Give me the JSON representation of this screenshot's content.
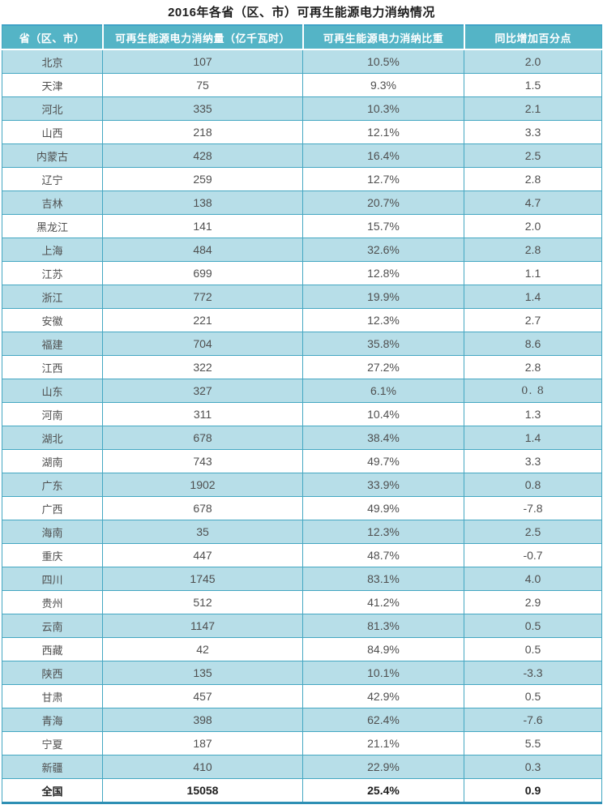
{
  "title": "2016年各省（区、市）可再生能源电力消纳情况",
  "colors": {
    "header_bg": "#54b4c6",
    "header_text": "#ffffff",
    "row_alt_bg": "#b7dee8",
    "row_bg": "#ffffff",
    "cell_border": "#44a7c2",
    "table_bottom_border": "#2e8fb4",
    "cell_text": "#4f4f4f",
    "title_text": "#1e1e1e"
  },
  "chart_data": {
    "type": "table",
    "title": "2016年各省（区、市）可再生能源电力消纳情况",
    "columns": [
      "省（区、市）",
      "可再生能源电力消纳量（亿千瓦时）",
      "可再生能源电力消纳比重",
      "同比增加百分点"
    ],
    "rows": [
      [
        "北京",
        "107",
        "10.5%",
        "2.0"
      ],
      [
        "天津",
        "75",
        "9.3%",
        "1.5"
      ],
      [
        "河北",
        "335",
        "10.3%",
        "2.1"
      ],
      [
        "山西",
        "218",
        "12.1%",
        "3.3"
      ],
      [
        "内蒙古",
        "428",
        "16.4%",
        "2.5"
      ],
      [
        "辽宁",
        "259",
        "12.7%",
        "2.8"
      ],
      [
        "吉林",
        "138",
        "20.7%",
        "4.7"
      ],
      [
        "黑龙江",
        "141",
        "15.7%",
        "2.0"
      ],
      [
        "上海",
        "484",
        "32.6%",
        "2.8"
      ],
      [
        "江苏",
        "699",
        "12.8%",
        "1.1"
      ],
      [
        "浙江",
        "772",
        "19.9%",
        "1.4"
      ],
      [
        "安徽",
        "221",
        "12.3%",
        "2.7"
      ],
      [
        "福建",
        "704",
        "35.8%",
        "8.6"
      ],
      [
        "江西",
        "322",
        "27.2%",
        "2.8"
      ],
      [
        "山东",
        "327",
        "6.1%",
        "0. 8"
      ],
      [
        "河南",
        "311",
        "10.4%",
        "1.3"
      ],
      [
        "湖北",
        "678",
        "38.4%",
        "1.4"
      ],
      [
        "湖南",
        "743",
        "49.7%",
        "3.3"
      ],
      [
        "广东",
        "1902",
        "33.9%",
        "0.8"
      ],
      [
        "广西",
        "678",
        "49.9%",
        "-7.8"
      ],
      [
        "海南",
        "35",
        "12.3%",
        "2.5"
      ],
      [
        "重庆",
        "447",
        "48.7%",
        "-0.7"
      ],
      [
        "四川",
        "1745",
        "83.1%",
        "4.0"
      ],
      [
        "贵州",
        "512",
        "41.2%",
        "2.9"
      ],
      [
        "云南",
        "1147",
        "81.3%",
        "0.5"
      ],
      [
        "西藏",
        "42",
        "84.9%",
        "0.5"
      ],
      [
        "陕西",
        "135",
        "10.1%",
        "-3.3"
      ],
      [
        "甘肃",
        "457",
        "42.9%",
        "0.5"
      ],
      [
        "青海",
        "398",
        "62.4%",
        "-7.6"
      ],
      [
        "宁夏",
        "187",
        "21.1%",
        "5.5"
      ],
      [
        "新疆",
        "410",
        "22.9%",
        "0.3"
      ],
      [
        "全国",
        "15058",
        "25.4%",
        "0.9"
      ]
    ],
    "total_row_label": "全国",
    "layout_hints": {
      "striped": true,
      "stripe_pattern": "odd-rows-cyan",
      "header_position": "top",
      "text_align": "center"
    }
  }
}
